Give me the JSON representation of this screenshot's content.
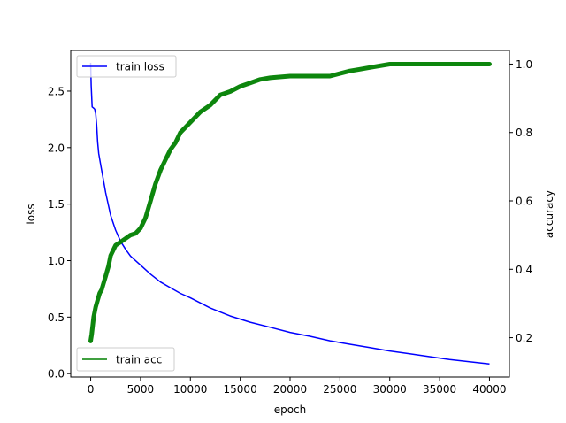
{
  "chart_data": {
    "type": "line",
    "title": "",
    "xlabel": "epoch",
    "ylabel_left": "loss",
    "ylabel_right": "accuracy",
    "xlim": [
      -2000,
      42000
    ],
    "ylim_left": [
      -0.03,
      2.86
    ],
    "ylim_right": [
      0.085,
      1.04
    ],
    "x_ticks": [
      0,
      5000,
      10000,
      15000,
      20000,
      25000,
      30000,
      35000,
      40000
    ],
    "y_ticks_left": [
      0.0,
      0.5,
      1.0,
      1.5,
      2.0,
      2.5
    ],
    "y_ticks_right": [
      0.2,
      0.4,
      0.6,
      0.8,
      1.0
    ],
    "grid": false,
    "series": [
      {
        "name": "train loss",
        "axis": "left",
        "color": "#0000ff",
        "legend_position": "upper-left",
        "x": [
          0,
          50,
          150,
          300,
          400,
          500,
          600,
          700,
          800,
          1000,
          1200,
          1500,
          2000,
          2500,
          3000,
          3500,
          4000,
          5000,
          6000,
          7000,
          8000,
          9000,
          10000,
          12000,
          14000,
          16000,
          18000,
          20000,
          22000,
          24000,
          26000,
          28000,
          30000,
          32000,
          34000,
          36000,
          38000,
          40000
        ],
        "values": [
          2.75,
          2.55,
          2.36,
          2.35,
          2.34,
          2.3,
          2.2,
          2.05,
          1.95,
          1.85,
          1.75,
          1.6,
          1.4,
          1.27,
          1.17,
          1.1,
          1.04,
          0.96,
          0.88,
          0.81,
          0.76,
          0.71,
          0.67,
          0.58,
          0.51,
          0.455,
          0.41,
          0.365,
          0.33,
          0.29,
          0.26,
          0.23,
          0.2,
          0.175,
          0.15,
          0.125,
          0.105,
          0.085
        ]
      },
      {
        "name": "train acc",
        "axis": "right",
        "color": "#008000",
        "legend_position": "lower-left",
        "x": [
          0,
          100,
          300,
          500,
          700,
          900,
          1100,
          1300,
          1500,
          1800,
          2000,
          2500,
          3000,
          3500,
          4000,
          4500,
          5000,
          5500,
          6000,
          6500,
          7000,
          7500,
          8000,
          8500,
          9000,
          10000,
          11000,
          12000,
          13000,
          14000,
          15000,
          16000,
          17000,
          18000,
          20000,
          22000,
          24000,
          26000,
          27000,
          28000,
          30000,
          32000,
          35000,
          38000,
          40000
        ],
        "values": [
          0.19,
          0.21,
          0.26,
          0.29,
          0.31,
          0.33,
          0.34,
          0.36,
          0.38,
          0.41,
          0.44,
          0.47,
          0.48,
          0.49,
          0.5,
          0.505,
          0.52,
          0.55,
          0.6,
          0.65,
          0.69,
          0.72,
          0.75,
          0.77,
          0.8,
          0.83,
          0.86,
          0.88,
          0.91,
          0.92,
          0.935,
          0.945,
          0.955,
          0.96,
          0.965,
          0.965,
          0.965,
          0.98,
          0.985,
          0.99,
          1.0,
          1.0,
          1.0,
          1.0,
          1.0
        ]
      }
    ]
  }
}
